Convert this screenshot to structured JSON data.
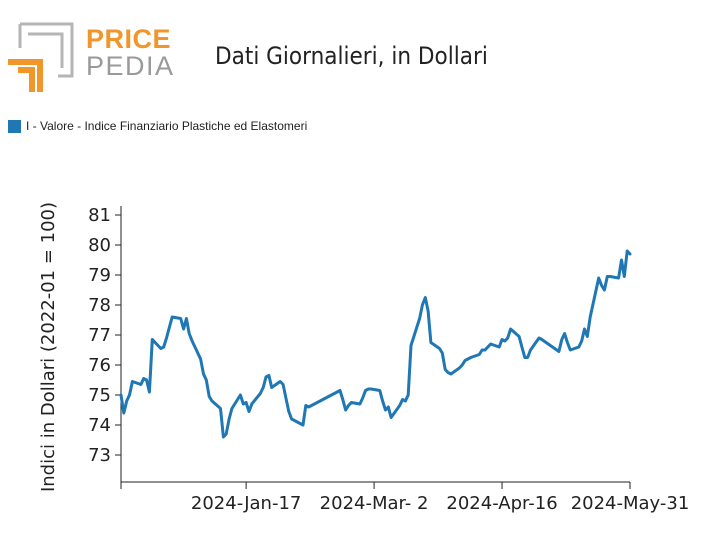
{
  "logo": {
    "line1": "PRICE",
    "line2": "PEDIA"
  },
  "colors": {
    "series": "#1f77b4",
    "logo_orange": "#f0962b",
    "logo_gray": "#9a9a9a"
  },
  "chart_data": {
    "type": "line",
    "title": "Dati Giornalieri, in Dollari",
    "ylabel": "Indici in Dollari (2022-01 = 100)",
    "xlabel": "",
    "ylim": [
      72.1,
      81.3
    ],
    "yticks": [
      73,
      74,
      75,
      76,
      77,
      78,
      79,
      80,
      81
    ],
    "xlim": [
      "2023-12-04",
      "2024-05-31"
    ],
    "xticks": [
      {
        "date": "2024-01-17",
        "label": "2024-Jan-17"
      },
      {
        "date": "2024-03-02",
        "label": "2024-Mar- 2"
      },
      {
        "date": "2024-04-16",
        "label": "2024-Apr-16"
      },
      {
        "date": "2024-05-31",
        "label": "2024-May-31"
      }
    ],
    "legend_position": "top-left",
    "grid": false,
    "series": [
      {
        "name": "I - Valore - Indice Finanziario Plastiche ed Elastomeri",
        "points": [
          [
            "2023-12-04",
            75.0
          ],
          [
            "2023-12-05",
            74.4
          ],
          [
            "2023-12-06",
            74.8
          ],
          [
            "2023-12-07",
            75.0
          ],
          [
            "2023-12-08",
            75.45
          ],
          [
            "2023-12-11",
            75.35
          ],
          [
            "2023-12-12",
            75.55
          ],
          [
            "2023-12-13",
            75.5
          ],
          [
            "2023-12-14",
            75.1
          ],
          [
            "2023-12-15",
            76.85
          ],
          [
            "2023-12-18",
            76.55
          ],
          [
            "2023-12-19",
            76.6
          ],
          [
            "2023-12-20",
            76.9
          ],
          [
            "2023-12-21",
            77.25
          ],
          [
            "2023-12-22",
            77.6
          ],
          [
            "2023-12-25",
            77.55
          ],
          [
            "2023-12-26",
            77.2
          ],
          [
            "2023-12-27",
            77.55
          ],
          [
            "2023-12-28",
            77.05
          ],
          [
            "2023-12-29",
            76.8
          ],
          [
            "2024-01-01",
            76.2
          ],
          [
            "2024-01-02",
            75.7
          ],
          [
            "2024-01-03",
            75.5
          ],
          [
            "2024-01-04",
            74.95
          ],
          [
            "2024-01-05",
            74.8
          ],
          [
            "2024-01-08",
            74.55
          ],
          [
            "2024-01-09",
            73.6
          ],
          [
            "2024-01-10",
            73.7
          ],
          [
            "2024-01-11",
            74.2
          ],
          [
            "2024-01-12",
            74.55
          ],
          [
            "2024-01-15",
            75.0
          ],
          [
            "2024-01-16",
            74.7
          ],
          [
            "2024-01-17",
            74.75
          ],
          [
            "2024-01-18",
            74.45
          ],
          [
            "2024-01-19",
            74.7
          ],
          [
            "2024-01-22",
            75.05
          ],
          [
            "2024-01-23",
            75.25
          ],
          [
            "2024-01-24",
            75.6
          ],
          [
            "2024-01-25",
            75.65
          ],
          [
            "2024-01-26",
            75.25
          ],
          [
            "2024-01-29",
            75.45
          ],
          [
            "2024-01-30",
            75.35
          ],
          [
            "2024-01-31",
            74.9
          ],
          [
            "2024-02-01",
            74.45
          ],
          [
            "2024-02-02",
            74.2
          ],
          [
            "2024-02-05",
            74.05
          ],
          [
            "2024-02-06",
            74.0
          ],
          [
            "2024-02-07",
            74.65
          ],
          [
            "2024-02-08",
            74.6
          ],
          [
            "2024-02-19",
            75.15
          ],
          [
            "2024-02-20",
            74.85
          ],
          [
            "2024-02-21",
            74.5
          ],
          [
            "2024-02-22",
            74.65
          ],
          [
            "2024-02-23",
            74.75
          ],
          [
            "2024-02-26",
            74.7
          ],
          [
            "2024-02-27",
            74.9
          ],
          [
            "2024-02-28",
            75.15
          ],
          [
            "2024-02-29",
            75.2
          ],
          [
            "2024-03-01",
            75.2
          ],
          [
            "2024-03-04",
            75.15
          ],
          [
            "2024-03-05",
            74.8
          ],
          [
            "2024-03-06",
            74.5
          ],
          [
            "2024-03-07",
            74.6
          ],
          [
            "2024-03-08",
            74.25
          ],
          [
            "2024-03-11",
            74.65
          ],
          [
            "2024-03-12",
            74.85
          ],
          [
            "2024-03-13",
            74.8
          ],
          [
            "2024-03-14",
            75.0
          ],
          [
            "2024-03-15",
            76.65
          ],
          [
            "2024-03-18",
            77.55
          ],
          [
            "2024-03-19",
            78.0
          ],
          [
            "2024-03-20",
            78.25
          ],
          [
            "2024-03-21",
            77.8
          ],
          [
            "2024-03-22",
            76.75
          ],
          [
            "2024-03-25",
            76.55
          ],
          [
            "2024-03-26",
            76.4
          ],
          [
            "2024-03-27",
            75.85
          ],
          [
            "2024-03-28",
            75.75
          ],
          [
            "2024-03-29",
            75.7
          ],
          [
            "2024-04-01",
            75.9
          ],
          [
            "2024-04-02",
            76.0
          ],
          [
            "2024-04-03",
            76.15
          ],
          [
            "2024-04-04",
            76.2
          ],
          [
            "2024-04-05",
            76.25
          ],
          [
            "2024-04-08",
            76.35
          ],
          [
            "2024-04-09",
            76.5
          ],
          [
            "2024-04-10",
            76.5
          ],
          [
            "2024-04-11",
            76.6
          ],
          [
            "2024-04-12",
            76.7
          ],
          [
            "2024-04-15",
            76.6
          ],
          [
            "2024-04-16",
            76.85
          ],
          [
            "2024-04-17",
            76.8
          ],
          [
            "2024-04-18",
            76.9
          ],
          [
            "2024-04-19",
            77.2
          ],
          [
            "2024-04-22",
            76.95
          ],
          [
            "2024-04-23",
            76.6
          ],
          [
            "2024-04-24",
            76.25
          ],
          [
            "2024-04-25",
            76.25
          ],
          [
            "2024-04-26",
            76.5
          ],
          [
            "2024-04-29",
            76.9
          ],
          [
            "2024-04-30",
            76.85
          ],
          [
            "2024-05-06",
            76.45
          ],
          [
            "2024-05-07",
            76.85
          ],
          [
            "2024-05-08",
            77.05
          ],
          [
            "2024-05-09",
            76.75
          ],
          [
            "2024-05-10",
            76.5
          ],
          [
            "2024-05-13",
            76.6
          ],
          [
            "2024-05-14",
            76.8
          ],
          [
            "2024-05-15",
            77.2
          ],
          [
            "2024-05-16",
            76.95
          ],
          [
            "2024-05-17",
            77.6
          ],
          [
            "2024-05-20",
            78.9
          ],
          [
            "2024-05-21",
            78.65
          ],
          [
            "2024-05-22",
            78.5
          ],
          [
            "2024-05-23",
            78.95
          ],
          [
            "2024-05-24",
            78.95
          ],
          [
            "2024-05-27",
            78.9
          ],
          [
            "2024-05-28",
            79.5
          ],
          [
            "2024-05-29",
            78.95
          ],
          [
            "2024-05-30",
            79.8
          ],
          [
            "2024-05-31",
            79.7
          ]
        ]
      }
    ]
  }
}
